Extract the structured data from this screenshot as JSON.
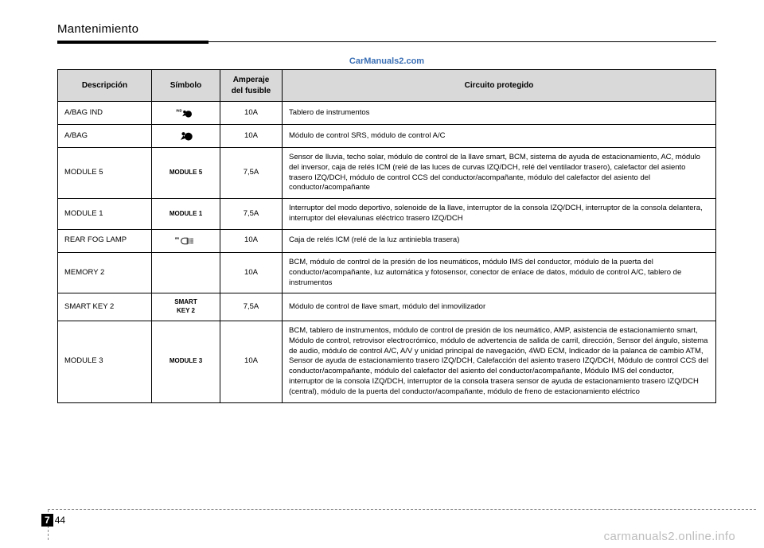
{
  "header": {
    "section_title": "Mantenimiento"
  },
  "watermark_top": "CarManuals2.com",
  "table": {
    "headers": {
      "c1": "Descripción",
      "c2": "Símbolo",
      "c3": "Amperaje del fusible",
      "c4": "Circuito protegido"
    },
    "rows": [
      {
        "desc": "A/BAG IND",
        "symbol_type": "airbag-ind",
        "symbol_text": "",
        "amp": "10A",
        "circuit": "Tablero de instrumentos"
      },
      {
        "desc": "A/BAG",
        "symbol_type": "airbag",
        "symbol_text": "",
        "amp": "10A",
        "circuit": "Módulo de control SRS, módulo de control A/C"
      },
      {
        "desc": "MODULE 5",
        "symbol_type": "text",
        "symbol_text": "MODULE 5",
        "amp": "7,5A",
        "circuit": "Sensor de lluvia, techo solar, módulo de control de la llave smart, BCM, sistema de ayuda de estacionamiento, AC, módulo del inversor, caja de relés ICM (relé de las luces de curvas IZQ/DCH, relé del ventilador trasero), calefactor del asiento trasero IZQ/DCH, módulo de control CCS del conductor/acompañante, módulo del calefactor del asiento del conductor/acompañante"
      },
      {
        "desc": "MODULE 1",
        "symbol_type": "text",
        "symbol_text": "MODULE 1",
        "amp": "7,5A",
        "circuit": "Interruptor del modo deportivo, solenoide de la llave, interruptor de la consola IZQ/DCH, interruptor de la consola delantera, interruptor del elevalunas eléctrico trasero IZQ/DCH"
      },
      {
        "desc": "REAR FOG LAMP",
        "symbol_type": "rear-fog",
        "symbol_text": "",
        "amp": "10A",
        "circuit": "Caja de relés ICM (relé de la luz antiniebla trasera)"
      },
      {
        "desc": "MEMORY 2",
        "symbol_type": "blank",
        "symbol_text": "",
        "amp": "10A",
        "circuit": "BCM, módulo de control de la presión de los neumáticos, módulo IMS del conductor, módulo de la puerta del conductor/acompañante, luz automática y fotosensor, conector de enlace de datos, módulo de control A/C, tablero de instrumentos"
      },
      {
        "desc": "SMART KEY 2",
        "symbol_type": "text-2line",
        "symbol_text": "SMART KEY 2",
        "amp": "7,5A",
        "circuit": "Módulo de control de llave smart, módulo del inmovilizador"
      },
      {
        "desc": "MODULE 3",
        "symbol_type": "text",
        "symbol_text": "MODULE 3",
        "amp": "10A",
        "circuit": "BCM, tablero de instrumentos, módulo de control de presión de los neumático, AMP, asistencia de estacionamiento smart, Módulo de control, retrovisor electrocrómico, módulo de advertencia de salida de carril, dirección, Sensor del ángulo, sistema de audio, módulo de control A/C, A/V y unidad principal de navegación, 4WD ECM, Indicador de la palanca de cambio ATM, Sensor de ayuda de estacionamiento trasero IZQ/DCH, Calefacción del asiento trasero IZQ/DCH, Módulo de control CCS del conductor/acompañante, módulo del calefactor del asiento del conductor/acompañante, Módulo IMS del conductor, interruptor de la consola IZQ/DCH, interruptor de la consola trasera sensor de ayuda de estacionamiento trasero IZQ/DCH (central), módulo de la puerta del conductor/acompañante, módulo de freno de estacionamiento eléctrico"
      }
    ]
  },
  "page_number": {
    "chapter": "7",
    "page": "44"
  },
  "bottom_watermark": "carmanuals2.online.info",
  "colors": {
    "header_bg": "#d9d9d9",
    "watermark_blue": "#3a6fb5",
    "bottom_gray": "#bdbdbd"
  }
}
